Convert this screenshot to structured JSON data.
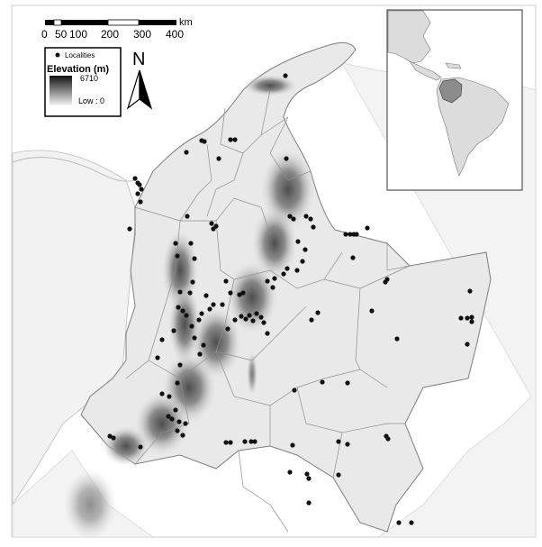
{
  "scale_bar": {
    "unit": "km",
    "ticks": [
      "0",
      "50",
      "100",
      "200",
      "300",
      "400"
    ]
  },
  "legend": {
    "localities_label": "Localities",
    "elevation_title": "Elevation (m)",
    "high_label": "6710",
    "low_label": "Low : 0"
  },
  "north_arrow": {
    "label": "N"
  },
  "colors": {
    "water": "#ffffff",
    "land": "#ececec",
    "border": "#9a9a9a",
    "mountain_dark": "#5a5a5a",
    "mountain_light": "#bdbdbd",
    "inset_land": "#dedede",
    "inset_highlight": "#8c8c8c",
    "locality": "#111111"
  },
  "icons": [
    "north-arrow-icon",
    "locality-dot-icon",
    "elevation-ramp-icon"
  ],
  "inset": {
    "description_icon": "americas-inset-map"
  }
}
